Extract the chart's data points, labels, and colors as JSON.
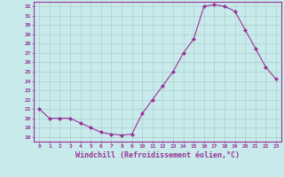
{
  "x": [
    0,
    1,
    2,
    3,
    4,
    5,
    6,
    7,
    8,
    9,
    10,
    11,
    12,
    13,
    14,
    15,
    16,
    17,
    18,
    19,
    20,
    21,
    22,
    23
  ],
  "y": [
    21.0,
    20.0,
    20.0,
    20.0,
    19.5,
    19.0,
    18.5,
    18.3,
    18.2,
    18.3,
    20.5,
    22.0,
    23.5,
    25.0,
    27.0,
    28.5,
    32.0,
    32.2,
    32.0,
    31.5,
    29.5,
    27.5,
    25.5,
    24.2
  ],
  "line_color": "#993399",
  "marker": "D",
  "marker_size": 2,
  "bg_color": "#c8eaea",
  "grid_color": "#aacfcf",
  "xlabel": "Windchill (Refroidissement éolien,°C)",
  "xlabel_fontsize": 6,
  "ylim": [
    17.5,
    32.5
  ],
  "xlim": [
    -0.5,
    23.5
  ],
  "figsize": [
    3.2,
    2.0
  ],
  "dpi": 100
}
